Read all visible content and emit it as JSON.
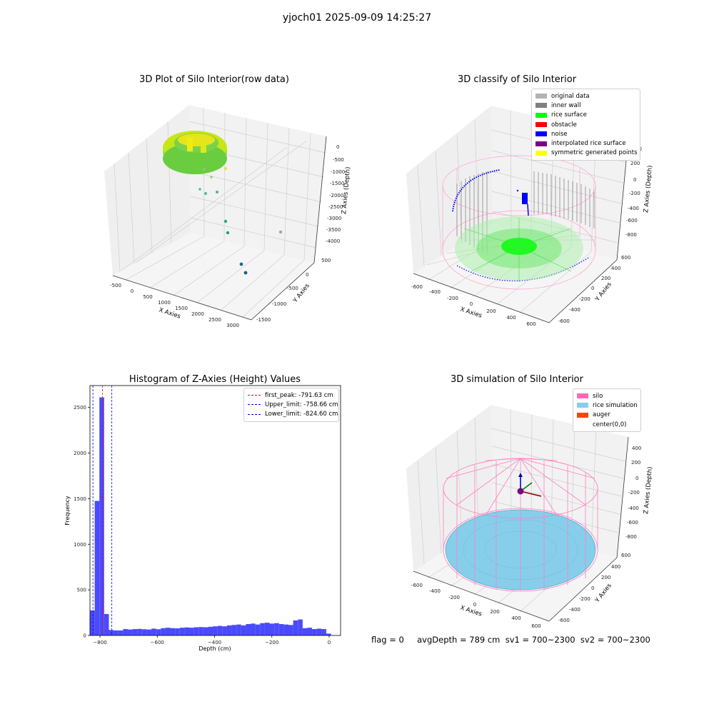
{
  "suptitle": "yjoch01 2025-09-09 14:25:27",
  "panel1": {
    "title": "3D Plot of Silo Interior(row data)",
    "xlabel": "X Axies",
    "ylabel": "Y Axies",
    "zlabel": "Z Axies (Depth)",
    "xticks": [
      "-500",
      "0",
      "500",
      "1000",
      "1500",
      "2000",
      "2500",
      "3000"
    ],
    "yticks": [
      "500",
      "0",
      "-500",
      "-1000",
      "-1500"
    ],
    "zticks": [
      "0",
      "-500",
      "-1000",
      "-1500",
      "-2000",
      "-2500",
      "-3000",
      "-3500",
      "-4000"
    ]
  },
  "panel2": {
    "title": "3D classify of Silo Interior",
    "xlabel": "X Axies",
    "ylabel": "Y Axies",
    "zlabel": "Z Axies (Depth)",
    "xticks": [
      "-600",
      "-400",
      "-200",
      "0",
      "200",
      "400",
      "600"
    ],
    "yticks": [
      "600",
      "400",
      "200",
      "0",
      "-200",
      "-400",
      "-600"
    ],
    "zticks": [
      "200",
      "0",
      "-200",
      "-400",
      "-600",
      "-800"
    ],
    "zcut": "00",
    "legend": [
      {
        "label": "original data",
        "color": "#b3b3b3"
      },
      {
        "label": "inner wall",
        "color": "#808080"
      },
      {
        "label": "rice surface",
        "color": "#00ff00"
      },
      {
        "label": "obstacle",
        "color": "#ff0000"
      },
      {
        "label": "noise",
        "color": "#0000ff"
      },
      {
        "label": "interpolated rice surface",
        "color": "#800080"
      },
      {
        "label": "symmetric generated points",
        "color": "#ffff00"
      }
    ]
  },
  "panel3": {
    "title": "Histogram of Z-Axies (Height) Values",
    "xlabel": "Depth (cm)",
    "ylabel": "Frequency",
    "xticks": [
      "-800",
      "-600",
      "-400",
      "-200",
      "0"
    ],
    "yticks": [
      "0",
      "500",
      "1000",
      "1500",
      "2000",
      "2500"
    ],
    "legend": [
      {
        "label": "first_peak: -791.63 cm",
        "color": "#ff0000"
      },
      {
        "label": "Upper_limit: -758.66 cm",
        "color": "#0000ff"
      },
      {
        "label": "Lower_limit: -824.60 cm",
        "color": "#0000ff"
      }
    ]
  },
  "panel4": {
    "title": "3D simulation of Silo Interior",
    "xlabel": "X Axies",
    "ylabel": "Y Axies",
    "zlabel": "Z Axies (Depth)",
    "xticks": [
      "-600",
      "-400",
      "-200",
      "0",
      "200",
      "400",
      "600"
    ],
    "yticks": [
      "600",
      "400",
      "200",
      "0",
      "-200",
      "-400",
      "-600"
    ],
    "zticks": [
      "400",
      "200",
      "0",
      "-200",
      "-400",
      "-600",
      "-800"
    ],
    "legend": [
      {
        "label": "silo",
        "color": "#ff69b4"
      },
      {
        "label": "rice simulation",
        "color": "#87ceeb"
      },
      {
        "label": "auger",
        "color": "#ff4500"
      },
      {
        "label": "center(0,0)",
        "color": "#ffffff"
      }
    ]
  },
  "status": "flag = 0     avgDepth = 789 cm  sv1 = 700~2300  sv2 = 700~2300",
  "chart_data": [
    {
      "type": "scatter",
      "title": "3D Plot of Silo Interior(row data)",
      "xlabel": "X Axies",
      "ylabel": "Y Axies",
      "zlabel": "Z Axies (Depth)",
      "xlim": [
        -600,
        3200
      ],
      "ylim": [
        -1700,
        700
      ],
      "zlim": [
        -4200,
        200
      ]
    },
    {
      "type": "scatter",
      "title": "3D classify of Silo Interior",
      "xlabel": "X Axies",
      "ylabel": "Y Axies",
      "zlabel": "Z Axies (Depth)",
      "series": [
        {
          "name": "original data"
        },
        {
          "name": "inner wall"
        },
        {
          "name": "rice surface"
        },
        {
          "name": "obstacle"
        },
        {
          "name": "noise"
        },
        {
          "name": "interpolated rice surface"
        },
        {
          "name": "symmetric generated points"
        }
      ],
      "xlim": [
        -700,
        700
      ],
      "ylim": [
        -700,
        700
      ],
      "zlim": [
        -900,
        300
      ]
    },
    {
      "type": "bar",
      "title": "Histogram of Z-Axies (Height) Values",
      "xlabel": "Depth (cm)",
      "ylabel": "Frequency",
      "xlim": [
        -835,
        40
      ],
      "ylim": [
        0,
        2740
      ],
      "bin_width": 16.5,
      "bin_starts": [
        -835,
        -818.5,
        -802,
        -785.5,
        -769,
        -752.5,
        -736,
        -719.5,
        -703,
        -686.5,
        -670,
        -653.5,
        -637,
        -620.5,
        -604,
        -587.5,
        -571,
        -554.5,
        -538,
        -521.5,
        -505,
        -488.5,
        -472,
        -455.5,
        -439,
        -422.5,
        -406,
        -389.5,
        -373,
        -356.5,
        -340,
        -323.5,
        -307,
        -290.5,
        -274,
        -257.5,
        -241,
        -224.5,
        -208,
        -191.5,
        -175,
        -158.5,
        -142,
        -125.5,
        -109,
        -92.5,
        -76,
        -59.5,
        -43,
        -26.5,
        -10
      ],
      "values": [
        275,
        1475,
        2610,
        235,
        60,
        55,
        55,
        70,
        65,
        70,
        72,
        68,
        65,
        75,
        68,
        80,
        85,
        80,
        78,
        85,
        88,
        85,
        90,
        92,
        90,
        95,
        100,
        105,
        100,
        110,
        115,
        120,
        110,
        125,
        130,
        120,
        135,
        140,
        130,
        135,
        125,
        120,
        115,
        165,
        175,
        80,
        85,
        70,
        75,
        70,
        20
      ],
      "vlines": [
        {
          "name": "first_peak: -791.63 cm",
          "x": -791.63,
          "color": "#ff0000"
        },
        {
          "name": "Upper_limit: -758.66 cm",
          "x": -758.66,
          "color": "#0000ff"
        },
        {
          "name": "Lower_limit: -824.60 cm",
          "x": -824.6,
          "color": "#0000ff"
        }
      ],
      "bar_color": "#4a4aff"
    },
    {
      "type": "scatter",
      "title": "3D simulation of Silo Interior",
      "xlabel": "X Axies",
      "ylabel": "Y Axies",
      "zlabel": "Z Axies (Depth)",
      "series": [
        {
          "name": "silo"
        },
        {
          "name": "rice simulation"
        },
        {
          "name": "auger"
        },
        {
          "name": "center(0,0)"
        }
      ],
      "xlim": [
        -700,
        700
      ],
      "ylim": [
        -700,
        700
      ],
      "zlim": [
        -900,
        500
      ]
    }
  ]
}
